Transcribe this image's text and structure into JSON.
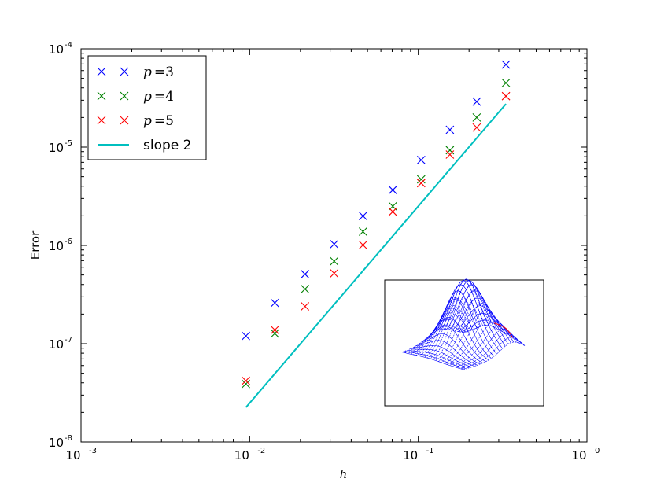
{
  "chart_data": {
    "type": "scatter",
    "xscale": "log",
    "yscale": "log",
    "xlabel": "h",
    "ylabel": "Error",
    "xlim": [
      0.001,
      1
    ],
    "ylim": [
      1e-08,
      0.0001
    ],
    "x_ticks": [
      {
        "base": "10",
        "exp": "-3",
        "value": 0.001
      },
      {
        "base": "10",
        "exp": "-2",
        "value": 0.01
      },
      {
        "base": "10",
        "exp": "-1",
        "value": 0.1
      },
      {
        "base": "10",
        "exp": "0",
        "value": 1
      }
    ],
    "y_ticks": [
      {
        "base": "10",
        "exp": "-8",
        "value": 1e-08
      },
      {
        "base": "10",
        "exp": "-7",
        "value": 1e-07
      },
      {
        "base": "10",
        "exp": "-6",
        "value": 1e-06
      },
      {
        "base": "10",
        "exp": "-5",
        "value": 1e-05
      },
      {
        "base": "10",
        "exp": "-4",
        "value": 0.0001
      }
    ],
    "grid": false,
    "legend_position": "top-left",
    "x": [
      0.0095,
      0.0141,
      0.0213,
      0.0317,
      0.047,
      0.0706,
      0.104,
      0.154,
      0.222,
      0.331
    ],
    "series": [
      {
        "name": "p =3",
        "var": "p",
        "op": "=",
        "num": "3",
        "marker": "x",
        "color": "#0000ff",
        "values": [
          1.2e-07,
          2.6e-07,
          5.1e-07,
          1.03e-06,
          1.99e-06,
          3.66e-06,
          7.4e-06,
          1.5e-05,
          2.9e-05,
          6.9e-05
        ]
      },
      {
        "name": "p =4",
        "var": "p",
        "op": "=",
        "num": "4",
        "marker": "x",
        "color": "#008000",
        "values": [
          3.9e-08,
          1.27e-07,
          3.6e-07,
          6.9e-07,
          1.38e-06,
          2.5e-06,
          4.7e-06,
          9.3e-06,
          2e-05,
          4.5e-05
        ]
      },
      {
        "name": "p =5",
        "var": "p",
        "op": "=",
        "num": "5",
        "marker": "x",
        "color": "#ff0000",
        "values": [
          4.2e-08,
          1.38e-07,
          2.4e-07,
          5.2e-07,
          1.01e-06,
          2.2e-06,
          4.3e-06,
          8.4e-06,
          1.58e-05,
          3.3e-05
        ]
      },
      {
        "name": "slope 2",
        "marker": "line",
        "color": "#00bfbf",
        "line_x": [
          0.0095,
          0.331
        ],
        "line_y": [
          2.25e-08,
          2.75e-05
        ]
      }
    ],
    "inset": {
      "type": "3d-wireframe-surface",
      "mesh_color": "#0000ff",
      "accent_color": "#ff0000"
    }
  }
}
